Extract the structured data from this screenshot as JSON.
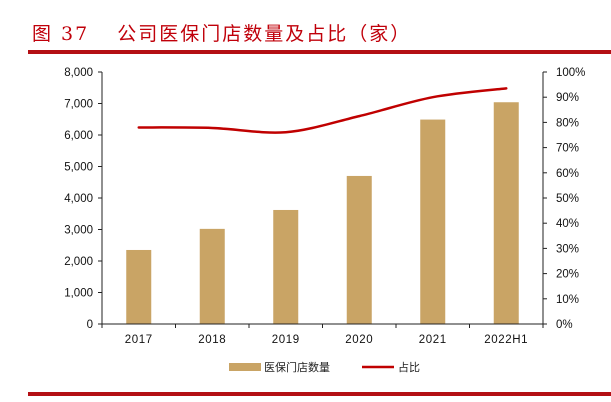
{
  "figure": {
    "label": "图 37",
    "title": "公司医保门店数量及占比（家）"
  },
  "colors": {
    "title": "#C0000A",
    "rule": "#B40F14",
    "bar": "#C9A465",
    "line": "#C00000"
  },
  "chart_data": {
    "type": "bar+line",
    "title": "公司医保门店数量及占比（家）",
    "categories": [
      "2017",
      "2018",
      "2019",
      "2020",
      "2021",
      "2022H1"
    ],
    "series": [
      {
        "name": "医保门店数量",
        "type": "bar",
        "axis": "left",
        "values": [
          2350,
          3020,
          3620,
          4700,
          6490,
          7040
        ]
      },
      {
        "name": "占比",
        "type": "line",
        "axis": "right",
        "values": [
          0.78,
          0.778,
          0.761,
          0.825,
          0.9,
          0.935
        ]
      }
    ],
    "left_axis": {
      "ylim": [
        0,
        8000
      ],
      "ticks": [
        "0",
        "1,000",
        "2,000",
        "3,000",
        "4,000",
        "5,000",
        "6,000",
        "7,000",
        "8,000"
      ]
    },
    "right_axis": {
      "ylim": [
        0,
        1
      ],
      "ticks": [
        "0%",
        "10%",
        "20%",
        "30%",
        "40%",
        "50%",
        "60%",
        "70%",
        "80%",
        "90%",
        "100%"
      ]
    },
    "xlabel": "",
    "ylabel": "",
    "grid": false,
    "legend_position": "bottom"
  },
  "legend": {
    "bar_label": "医保门店数量",
    "line_label": "占比"
  }
}
